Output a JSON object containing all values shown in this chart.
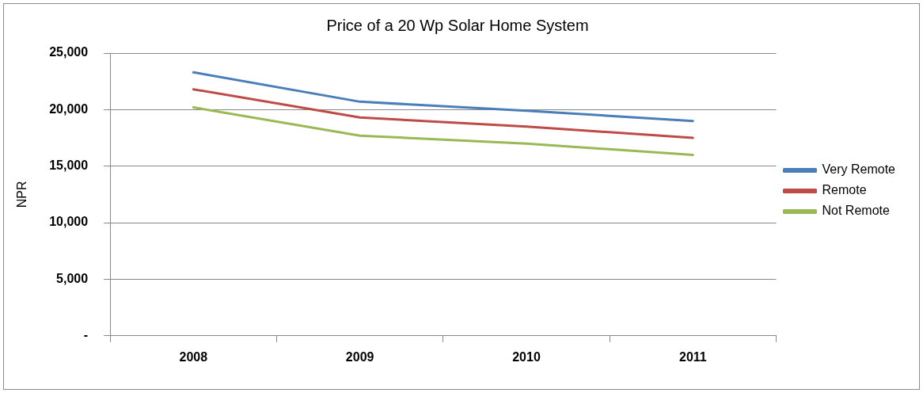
{
  "chart_data": {
    "type": "line",
    "title": "Price of a 20 Wp Solar Home System",
    "ylabel": "NPR",
    "categories": [
      "2008",
      "2009",
      "2010",
      "2011"
    ],
    "series": [
      {
        "name": "Very Remote",
        "color": "#4a7ebb",
        "values": [
          23300,
          20700,
          19900,
          19000
        ]
      },
      {
        "name": "Remote",
        "color": "#be4b48",
        "values": [
          21800,
          19300,
          18500,
          17500
        ]
      },
      {
        "name": "Not Remote",
        "color": "#98b954",
        "values": [
          20200,
          17700,
          17000,
          16000
        ]
      }
    ],
    "ylim": [
      0,
      25000
    ],
    "yticks": [
      {
        "value": 0,
        "label": "-"
      },
      {
        "value": 5000,
        "label": "5,000"
      },
      {
        "value": 10000,
        "label": "10,000"
      },
      {
        "value": 15000,
        "label": "15,000"
      },
      {
        "value": 20000,
        "label": "20,000"
      },
      {
        "value": 25000,
        "label": "25,000"
      }
    ],
    "grid": "y",
    "legend": "right",
    "marker": "none",
    "line_style": "solid"
  }
}
